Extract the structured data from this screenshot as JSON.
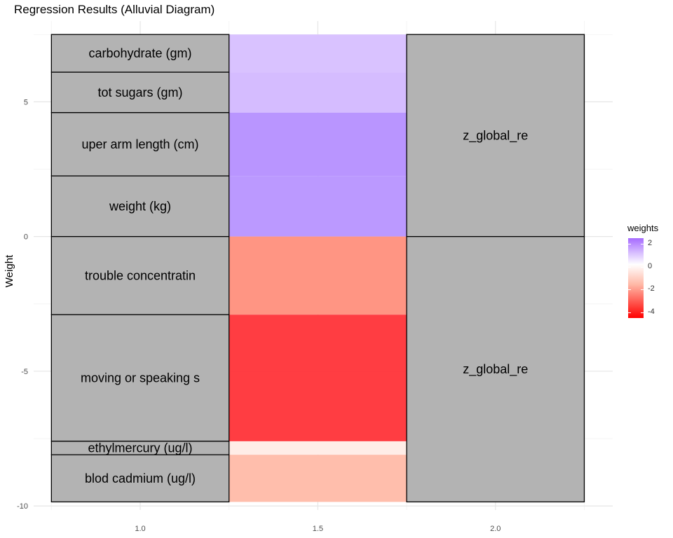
{
  "chart_data": {
    "type": "alluvial",
    "title": "Regression Results (Alluvial Diagram)",
    "ylabel": "Weight",
    "xlabel": "",
    "xlim": [
      0.7,
      2.33
    ],
    "ylim": [
      -10.15,
      8.0
    ],
    "x_ticks": [
      "1.0",
      "1.5",
      "2.0"
    ],
    "x_tick_values": [
      1.0,
      1.5,
      2.0
    ],
    "y_ticks": [
      "5",
      "0",
      "-5",
      "-10"
    ],
    "y_tick_values": [
      5,
      0,
      -5,
      -10
    ],
    "grid": true,
    "legend_position": "right",
    "legend": {
      "title": "weights",
      "ticks": [
        "2",
        "0",
        "-2",
        "-4"
      ],
      "tick_values": [
        2,
        0,
        -2,
        -4
      ],
      "range": [
        2.5,
        -4.5
      ],
      "high_color": "#a66bff",
      "mid_color": "#ffffff",
      "low_color": "#ff0000"
    },
    "strata_left": [
      {
        "label": "carbohydrate (gm)",
        "bottom": 6.1,
        "top": 7.5,
        "weight": 1.4,
        "color": "#d7bfff"
      },
      {
        "label": "tot sugars (gm)",
        "bottom": 4.6,
        "top": 6.1,
        "weight": 1.5,
        "color": "#d3b8ff"
      },
      {
        "label": "uper arm length (cm)",
        "bottom": 2.25,
        "top": 4.6,
        "weight": 2.35,
        "color": "#b58fff"
      },
      {
        "label": "weight (kg)",
        "bottom": 0.0,
        "top": 2.25,
        "weight": 2.25,
        "color": "#b793ff"
      },
      {
        "label": "trouble concentratin",
        "bottom": -2.9,
        "top": 0.0,
        "weight": -2.9,
        "color": "#ff8f7c"
      },
      {
        "label": "moving or speaking s",
        "bottom": -7.6,
        "top": -2.9,
        "weight": -4.7,
        "color": "#ff3338"
      },
      {
        "label": "ethylmercury (ug/l)",
        "bottom": -8.1,
        "top": -7.6,
        "weight": -0.5,
        "color": "#ffece6"
      },
      {
        "label": "blod cadmium (ug/l)",
        "bottom": -9.85,
        "top": -8.1,
        "weight": -1.75,
        "color": "#ffbba8"
      }
    ],
    "strata_right": [
      {
        "label": "z_global_re",
        "bottom": 0.0,
        "top": 7.5
      },
      {
        "label": "z_global_re",
        "bottom": -9.85,
        "top": 0.0
      }
    ],
    "stratum_fill": "#b3b3b3"
  }
}
